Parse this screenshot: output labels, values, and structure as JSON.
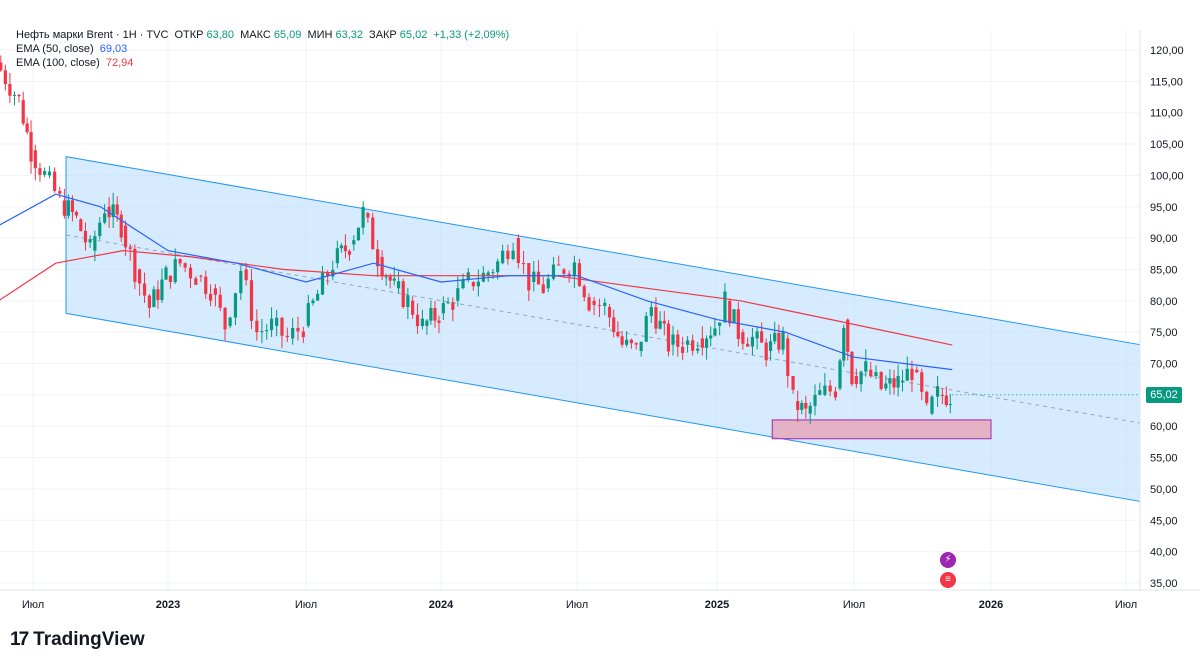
{
  "header": {
    "symbol": "Нефть марки Brent · 1Н · TVC",
    "open_label": "ОТКР",
    "open": "63,80",
    "high_label": "МАКС",
    "high": "65,09",
    "low_label": "МИН",
    "low": "63,32",
    "close_label": "ЗАКР",
    "close": "65,02",
    "change": "+1,33 (+2,09%)",
    "ema50_label": "EMA (50, close)",
    "ema50_value": "69,03",
    "ema100_label": "EMA (100, close)",
    "ema100_value": "72,94"
  },
  "price_tag": "65,02",
  "branding": {
    "logo_mark": "17",
    "name": "TradingView"
  },
  "events": [
    {
      "icon": "lightning-icon"
    },
    {
      "icon": "flag-icon"
    }
  ],
  "colors": {
    "up": "#089981",
    "down": "#f23645",
    "ema50": "#2962ff",
    "ema100": "#f23645",
    "channel_fill": "#bbdefb",
    "channel_line": "#2196f3",
    "zone_fill": "#e8a3b5",
    "zone_line": "#9c27b0"
  },
  "chart_data": {
    "type": "candlestick",
    "interval": "1W",
    "y_axis_ticks": [
      "120,00",
      "115,00",
      "110,00",
      "105,00",
      "100,00",
      "95,00",
      "90,00",
      "85,00",
      "80,00",
      "75,00",
      "70,00",
      "65,00",
      "60,00",
      "55,00",
      "50,00",
      "45,00",
      "40,00",
      "35,00"
    ],
    "ylim": [
      33,
      122
    ],
    "x_axis_ticks": [
      "Июл",
      "2023",
      "Июл",
      "2024",
      "Июл",
      "2025",
      "Июл",
      "2026",
      "Июл"
    ],
    "x_tick_dates": [
      "2022-07-01",
      "2023-01-01",
      "2023-07-01",
      "2024-01-01",
      "2024-07-01",
      "2025-01-01",
      "2025-07-01",
      "2026-01-01",
      "2026-07-01"
    ],
    "close_series": [
      {
        "date": "2022-05-15",
        "c": 118
      },
      {
        "date": "2022-06-15",
        "c": 112
      },
      {
        "date": "2022-07-01",
        "c": 104
      },
      {
        "date": "2022-07-20",
        "c": 100
      },
      {
        "date": "2022-08-10",
        "c": 96
      },
      {
        "date": "2022-09-01",
        "c": 93
      },
      {
        "date": "2022-09-20",
        "c": 88
      },
      {
        "date": "2022-10-10",
        "c": 95
      },
      {
        "date": "2022-11-01",
        "c": 92
      },
      {
        "date": "2022-11-20",
        "c": 85
      },
      {
        "date": "2022-12-10",
        "c": 79
      },
      {
        "date": "2023-01-01",
        "c": 84
      },
      {
        "date": "2023-01-20",
        "c": 86
      },
      {
        "date": "2023-02-10",
        "c": 84
      },
      {
        "date": "2023-03-01",
        "c": 82
      },
      {
        "date": "2023-03-20",
        "c": 76
      },
      {
        "date": "2023-04-10",
        "c": 85
      },
      {
        "date": "2023-05-01",
        "c": 75
      },
      {
        "date": "2023-05-20",
        "c": 76
      },
      {
        "date": "2023-06-10",
        "c": 74
      },
      {
        "date": "2023-07-01",
        "c": 76
      },
      {
        "date": "2023-07-20",
        "c": 81
      },
      {
        "date": "2023-08-10",
        "c": 86
      },
      {
        "date": "2023-09-01",
        "c": 89
      },
      {
        "date": "2023-09-20",
        "c": 94
      },
      {
        "date": "2023-10-10",
        "c": 87
      },
      {
        "date": "2023-11-01",
        "c": 82
      },
      {
        "date": "2023-11-20",
        "c": 80
      },
      {
        "date": "2023-12-10",
        "c": 76
      },
      {
        "date": "2024-01-01",
        "c": 78
      },
      {
        "date": "2024-01-20",
        "c": 80
      },
      {
        "date": "2024-02-10",
        "c": 83
      },
      {
        "date": "2024-03-01",
        "c": 84
      },
      {
        "date": "2024-03-20",
        "c": 86
      },
      {
        "date": "2024-04-10",
        "c": 90
      },
      {
        "date": "2024-05-01",
        "c": 83
      },
      {
        "date": "2024-05-20",
        "c": 82
      },
      {
        "date": "2024-06-10",
        "c": 85
      },
      {
        "date": "2024-07-01",
        "c": 86
      },
      {
        "date": "2024-07-20",
        "c": 80
      },
      {
        "date": "2024-08-10",
        "c": 79
      },
      {
        "date": "2024-09-01",
        "c": 73
      },
      {
        "date": "2024-09-20",
        "c": 72
      },
      {
        "date": "2024-10-10",
        "c": 79
      },
      {
        "date": "2024-11-01",
        "c": 73
      },
      {
        "date": "2024-11-20",
        "c": 73
      },
      {
        "date": "2024-12-10",
        "c": 74
      },
      {
        "date": "2025-01-01",
        "c": 76
      },
      {
        "date": "2025-01-15",
        "c": 80
      },
      {
        "date": "2025-02-01",
        "c": 75
      },
      {
        "date": "2025-02-20",
        "c": 74
      },
      {
        "date": "2025-03-10",
        "c": 72
      },
      {
        "date": "2025-04-01",
        "c": 74
      },
      {
        "date": "2025-04-15",
        "c": 64
      },
      {
        "date": "2025-05-01",
        "c": 62
      },
      {
        "date": "2025-05-20",
        "c": 65
      },
      {
        "date": "2025-06-10",
        "c": 66
      },
      {
        "date": "2025-06-20",
        "c": 77
      },
      {
        "date": "2025-07-01",
        "c": 68
      },
      {
        "date": "2025-07-20",
        "c": 69
      },
      {
        "date": "2025-08-10",
        "c": 66
      },
      {
        "date": "2025-09-01",
        "c": 67
      },
      {
        "date": "2025-09-20",
        "c": 69
      },
      {
        "date": "2025-10-10",
        "c": 62
      },
      {
        "date": "2025-10-25",
        "c": 65
      },
      {
        "date": "2025-11-10",
        "c": 65
      }
    ],
    "ema50_series": [
      {
        "date": "2022-05-15",
        "v": 92
      },
      {
        "date": "2022-08-01",
        "v": 97
      },
      {
        "date": "2022-10-01",
        "v": 95
      },
      {
        "date": "2023-01-01",
        "v": 88
      },
      {
        "date": "2023-04-01",
        "v": 86
      },
      {
        "date": "2023-07-01",
        "v": 83
      },
      {
        "date": "2023-10-01",
        "v": 86
      },
      {
        "date": "2024-01-01",
        "v": 83
      },
      {
        "date": "2024-04-01",
        "v": 84
      },
      {
        "date": "2024-07-01",
        "v": 84
      },
      {
        "date": "2024-10-01",
        "v": 80
      },
      {
        "date": "2025-01-01",
        "v": 77
      },
      {
        "date": "2025-04-01",
        "v": 75
      },
      {
        "date": "2025-07-01",
        "v": 71
      },
      {
        "date": "2025-11-10",
        "v": 69.03
      }
    ],
    "ema100_series": [
      {
        "date": "2022-05-15",
        "v": 80
      },
      {
        "date": "2022-08-01",
        "v": 86
      },
      {
        "date": "2022-11-01",
        "v": 88
      },
      {
        "date": "2023-02-01",
        "v": 87
      },
      {
        "date": "2023-06-01",
        "v": 85
      },
      {
        "date": "2023-10-01",
        "v": 84
      },
      {
        "date": "2024-02-01",
        "v": 84
      },
      {
        "date": "2024-06-01",
        "v": 84
      },
      {
        "date": "2024-10-01",
        "v": 82
      },
      {
        "date": "2025-02-01",
        "v": 80
      },
      {
        "date": "2025-06-01",
        "v": 77
      },
      {
        "date": "2025-11-10",
        "v": 72.94
      }
    ],
    "channel": {
      "upper": [
        {
          "date": "2022-08-15",
          "v": 103
        },
        {
          "date": "2026-07-20",
          "v": 73
        }
      ],
      "lower": [
        {
          "date": "2022-08-15",
          "v": 78
        },
        {
          "date": "2026-07-20",
          "v": 48
        }
      ],
      "mid": [
        {
          "date": "2022-08-15",
          "v": 90.5
        },
        {
          "date": "2026-07-20",
          "v": 60.5
        }
      ]
    },
    "support_zone": {
      "date_from": "2025-03-15",
      "date_to": "2026-01-01",
      "y_from": 58,
      "y_to": 61
    },
    "last_price": 65.02
  }
}
